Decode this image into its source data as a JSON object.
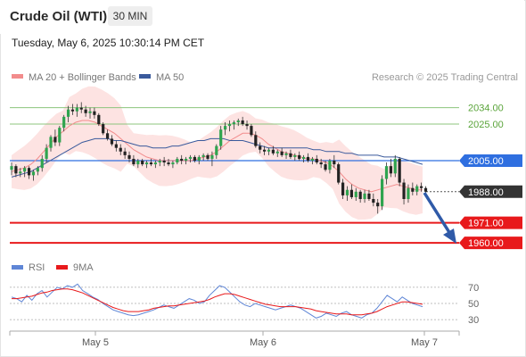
{
  "header": {
    "instrument": "Crude Oil (WTI)",
    "timeframe": "30 MIN",
    "timestamp": "Tuesday, May 6, 2025 10:30:14 PM CET"
  },
  "legend": {
    "items": [
      {
        "label": "MA 20 + Bollinger Bands",
        "color": "#f28c8c"
      },
      {
        "label": "MA 50",
        "color": "#3a5a9c"
      }
    ],
    "copyright": "Research © 2025 Trading Central"
  },
  "chart_data": {
    "type": "candlestick",
    "x_ticks": [
      "May 5",
      "May 6",
      "May 7"
    ],
    "y_range": [
      1925,
      2050
    ],
    "levels": [
      {
        "value": 2034.0,
        "label": "2034.00",
        "kind": "resistance",
        "color": "#8cc47c"
      },
      {
        "value": 2025.0,
        "label": "2025.00",
        "kind": "resistance",
        "color": "#8cc47c"
      },
      {
        "value": 2005.0,
        "label": "2005.00",
        "kind": "pivot",
        "color": "#2f6fe0"
      },
      {
        "value": 1988.0,
        "label": "1988.00",
        "kind": "last",
        "color": "#333333"
      },
      {
        "value": 1971.0,
        "label": "1971.00",
        "kind": "support",
        "color": "#e8191b"
      },
      {
        "value": 1960.0,
        "label": "1960.00",
        "kind": "support",
        "color": "#e8191b"
      }
    ],
    "candles": [
      [
        2000,
        2004,
        1997,
        2002
      ],
      [
        2002,
        2003,
        1996,
        1998
      ],
      [
        1998,
        2001,
        1996,
        1999
      ],
      [
        1999,
        2002,
        1996,
        2001
      ],
      [
        2001,
        2002,
        1995,
        1997
      ],
      [
        1997,
        2000,
        1994,
        1999
      ],
      [
        1999,
        2002,
        1997,
        2001
      ],
      [
        2001,
        2008,
        1999,
        2006
      ],
      [
        2006,
        2014,
        2004,
        2012
      ],
      [
        2012,
        2019,
        2010,
        2018
      ],
      [
        2018,
        2022,
        2013,
        2015
      ],
      [
        2015,
        2024,
        2013,
        2023
      ],
      [
        2023,
        2030,
        2021,
        2029
      ],
      [
        2029,
        2035,
        2026,
        2033
      ],
      [
        2033,
        2036,
        2030,
        2032
      ],
      [
        2032,
        2036,
        2029,
        2034
      ],
      [
        2034,
        2037,
        2031,
        2033
      ],
      [
        2033,
        2035,
        2029,
        2031
      ],
      [
        2031,
        2034,
        2028,
        2032
      ],
      [
        2032,
        2034,
        2028,
        2030
      ],
      [
        2030,
        2031,
        2024,
        2025
      ],
      [
        2025,
        2026,
        2019,
        2020
      ],
      [
        2020,
        2022,
        2016,
        2017
      ],
      [
        2017,
        2019,
        2013,
        2014
      ],
      [
        2014,
        2016,
        2010,
        2012
      ],
      [
        2012,
        2014,
        2008,
        2010
      ],
      [
        2010,
        2012,
        2006,
        2008
      ],
      [
        2008,
        2010,
        2004,
        2006
      ],
      [
        2006,
        2008,
        2002,
        2003
      ],
      [
        2003,
        2006,
        2001,
        2005
      ],
      [
        2005,
        2006,
        2002,
        2003
      ],
      [
        2003,
        2005,
        2001,
        2004
      ],
      [
        2004,
        2006,
        2002,
        2003
      ],
      [
        2003,
        2005,
        2001,
        2004
      ],
      [
        2004,
        2006,
        2002,
        2005
      ],
      [
        2005,
        2007,
        2002,
        2004
      ],
      [
        2004,
        2006,
        2002,
        2003
      ],
      [
        2003,
        2005,
        2001,
        2004
      ],
      [
        2004,
        2007,
        2003,
        2006
      ],
      [
        2006,
        2008,
        2003,
        2005
      ],
      [
        2005,
        2007,
        2003,
        2006
      ],
      [
        2006,
        2008,
        2004,
        2007
      ],
      [
        2007,
        2008,
        2004,
        2005
      ],
      [
        2005,
        2008,
        2003,
        2007
      ],
      [
        2007,
        2009,
        2005,
        2008
      ],
      [
        2008,
        2009,
        2005,
        2006
      ],
      [
        2006,
        2010,
        2002,
        2008
      ],
      [
        2008,
        2014,
        2006,
        2013
      ],
      [
        2013,
        2024,
        2011,
        2022
      ],
      [
        2022,
        2026,
        2019,
        2024
      ],
      [
        2024,
        2027,
        2021,
        2025
      ],
      [
        2025,
        2027,
        2022,
        2026
      ],
      [
        2026,
        2028,
        2024,
        2027
      ],
      [
        2027,
        2029,
        2024,
        2025
      ],
      [
        2025,
        2027,
        2022,
        2024
      ],
      [
        2024,
        2025,
        2018,
        2019
      ],
      [
        2019,
        2021,
        2012,
        2013
      ],
      [
        2013,
        2015,
        2009,
        2011
      ],
      [
        2011,
        2013,
        2008,
        2010
      ],
      [
        2010,
        2012,
        2008,
        2011
      ],
      [
        2011,
        2013,
        2008,
        2009
      ],
      [
        2009,
        2011,
        2007,
        2010
      ],
      [
        2010,
        2012,
        2007,
        2008
      ],
      [
        2008,
        2010,
        2006,
        2009
      ],
      [
        2009,
        2011,
        2006,
        2007
      ],
      [
        2007,
        2009,
        2005,
        2008
      ],
      [
        2008,
        2010,
        2005,
        2006
      ],
      [
        2006,
        2008,
        2004,
        2007
      ],
      [
        2007,
        2009,
        2004,
        2005
      ],
      [
        2005,
        2007,
        2003,
        2006
      ],
      [
        2006,
        2008,
        2003,
        2004
      ],
      [
        2004,
        2006,
        2001,
        2003
      ],
      [
        2003,
        2005,
        1999,
        2000
      ],
      [
        2000,
        2006,
        1998,
        2005
      ],
      [
        2005,
        2008,
        2001,
        2003
      ],
      [
        2003,
        2004,
        1992,
        1993
      ],
      [
        1993,
        1995,
        1984,
        1986
      ],
      [
        1986,
        1991,
        1983,
        1989
      ],
      [
        1989,
        1992,
        1984,
        1985
      ],
      [
        1985,
        1990,
        1983,
        1988
      ],
      [
        1988,
        1989,
        1982,
        1984
      ],
      [
        1984,
        1989,
        1982,
        1987
      ],
      [
        1987,
        1989,
        1983,
        1984
      ],
      [
        1984,
        1987,
        1980,
        1982
      ],
      [
        1982,
        1984,
        1976,
        1980
      ],
      [
        1980,
        1997,
        1978,
        1995
      ],
      [
        1995,
        2004,
        1992,
        2002
      ],
      [
        2002,
        2006,
        1996,
        1998
      ],
      [
        1998,
        2008,
        1996,
        2006
      ],
      [
        2006,
        2007,
        1991,
        1993
      ],
      [
        1993,
        1995,
        1981,
        1984
      ],
      [
        1984,
        1992,
        1982,
        1990
      ],
      [
        1990,
        1993,
        1986,
        1988
      ],
      [
        1988,
        1992,
        1986,
        1991
      ],
      [
        1991,
        1993,
        1988,
        1990
      ],
      [
        1990,
        1991,
        1986,
        1988
      ]
    ],
    "ma20": [
      1999,
      2000,
      2001,
      2003,
      2006,
      2010,
      2014,
      2018,
      2021,
      2024,
      2026,
      2027,
      2027,
      2026,
      2024,
      2022,
      2020,
      2017,
      2014,
      2011,
      2009,
      2007,
      2006,
      2005,
      2005,
      2005,
      2005,
      2005,
      2005,
      2006,
      2007,
      2008,
      2010,
      2013,
      2016,
      2018,
      2020,
      2020,
      2019,
      2017,
      2014,
      2012,
      2010,
      2009,
      2008,
      2007,
      2006,
      2006,
      2005,
      2004,
      2002,
      1999,
      1995,
      1992,
      1990,
      1989,
      1988,
      1989,
      1990,
      1991,
      1992,
      1991,
      1990,
      1989,
      1989
    ],
    "ma50": [
      1996,
      1997,
      1998,
      1999,
      2001,
      2003,
      2005,
      2007,
      2009,
      2011,
      2013,
      2015,
      2016,
      2017,
      2017,
      2017,
      2016,
      2016,
      2015,
      2014,
      2013,
      2013,
      2012,
      2012,
      2012,
      2013,
      2013,
      2014,
      2015,
      2016,
      2016,
      2017,
      2017,
      2017,
      2016,
      2016,
      2016,
      2015,
      2014,
      2013,
      2012,
      2012,
      2012,
      2012,
      2012,
      2012,
      2012,
      2011,
      2011,
      2010,
      2010,
      2010,
      2009,
      2009,
      2008,
      2008,
      2008,
      2008,
      2007,
      2007,
      2007,
      2006,
      2005,
      2004,
      2003
    ],
    "rsi": {
      "levels": [
        70,
        50,
        30
      ],
      "legend": [
        {
          "label": "RSI",
          "color": "#5f86d6"
        },
        {
          "label": "9MA",
          "color": "#e8191b"
        }
      ],
      "rsi_values": [
        58,
        56,
        52,
        60,
        54,
        62,
        66,
        58,
        64,
        70,
        68,
        72,
        70,
        74,
        66,
        62,
        58,
        55,
        50,
        46,
        42,
        40,
        38,
        36,
        35,
        36,
        38,
        40,
        42,
        45,
        48,
        46,
        44,
        48,
        52,
        56,
        54,
        50,
        52,
        60,
        66,
        72,
        70,
        64,
        58,
        52,
        48,
        46,
        50,
        48,
        46,
        44,
        42,
        44,
        46,
        48,
        46,
        44,
        40,
        36,
        32,
        34,
        38,
        36,
        34,
        38,
        40,
        36,
        34,
        32,
        36,
        38,
        44,
        52,
        60,
        56,
        52,
        58,
        54,
        50,
        48,
        46
      ],
      "ma_values": [
        56,
        56,
        57,
        58,
        59,
        61,
        63,
        64,
        66,
        67,
        68,
        68,
        67,
        65,
        63,
        60,
        57,
        54,
        51,
        48,
        45,
        43,
        41,
        40,
        40,
        40,
        41,
        42,
        44,
        45,
        46,
        47,
        47,
        48,
        49,
        50,
        51,
        52,
        53,
        55,
        58,
        60,
        62,
        62,
        61,
        59,
        57,
        55,
        53,
        51,
        49,
        48,
        47,
        46,
        46,
        46,
        46,
        45,
        44,
        43,
        41,
        40,
        39,
        38,
        37,
        37,
        37,
        36,
        36,
        36,
        37,
        38,
        40,
        43,
        46,
        48,
        50,
        52,
        52,
        51,
        50,
        49
      ]
    }
  },
  "annotations": {
    "arrow": "down"
  }
}
